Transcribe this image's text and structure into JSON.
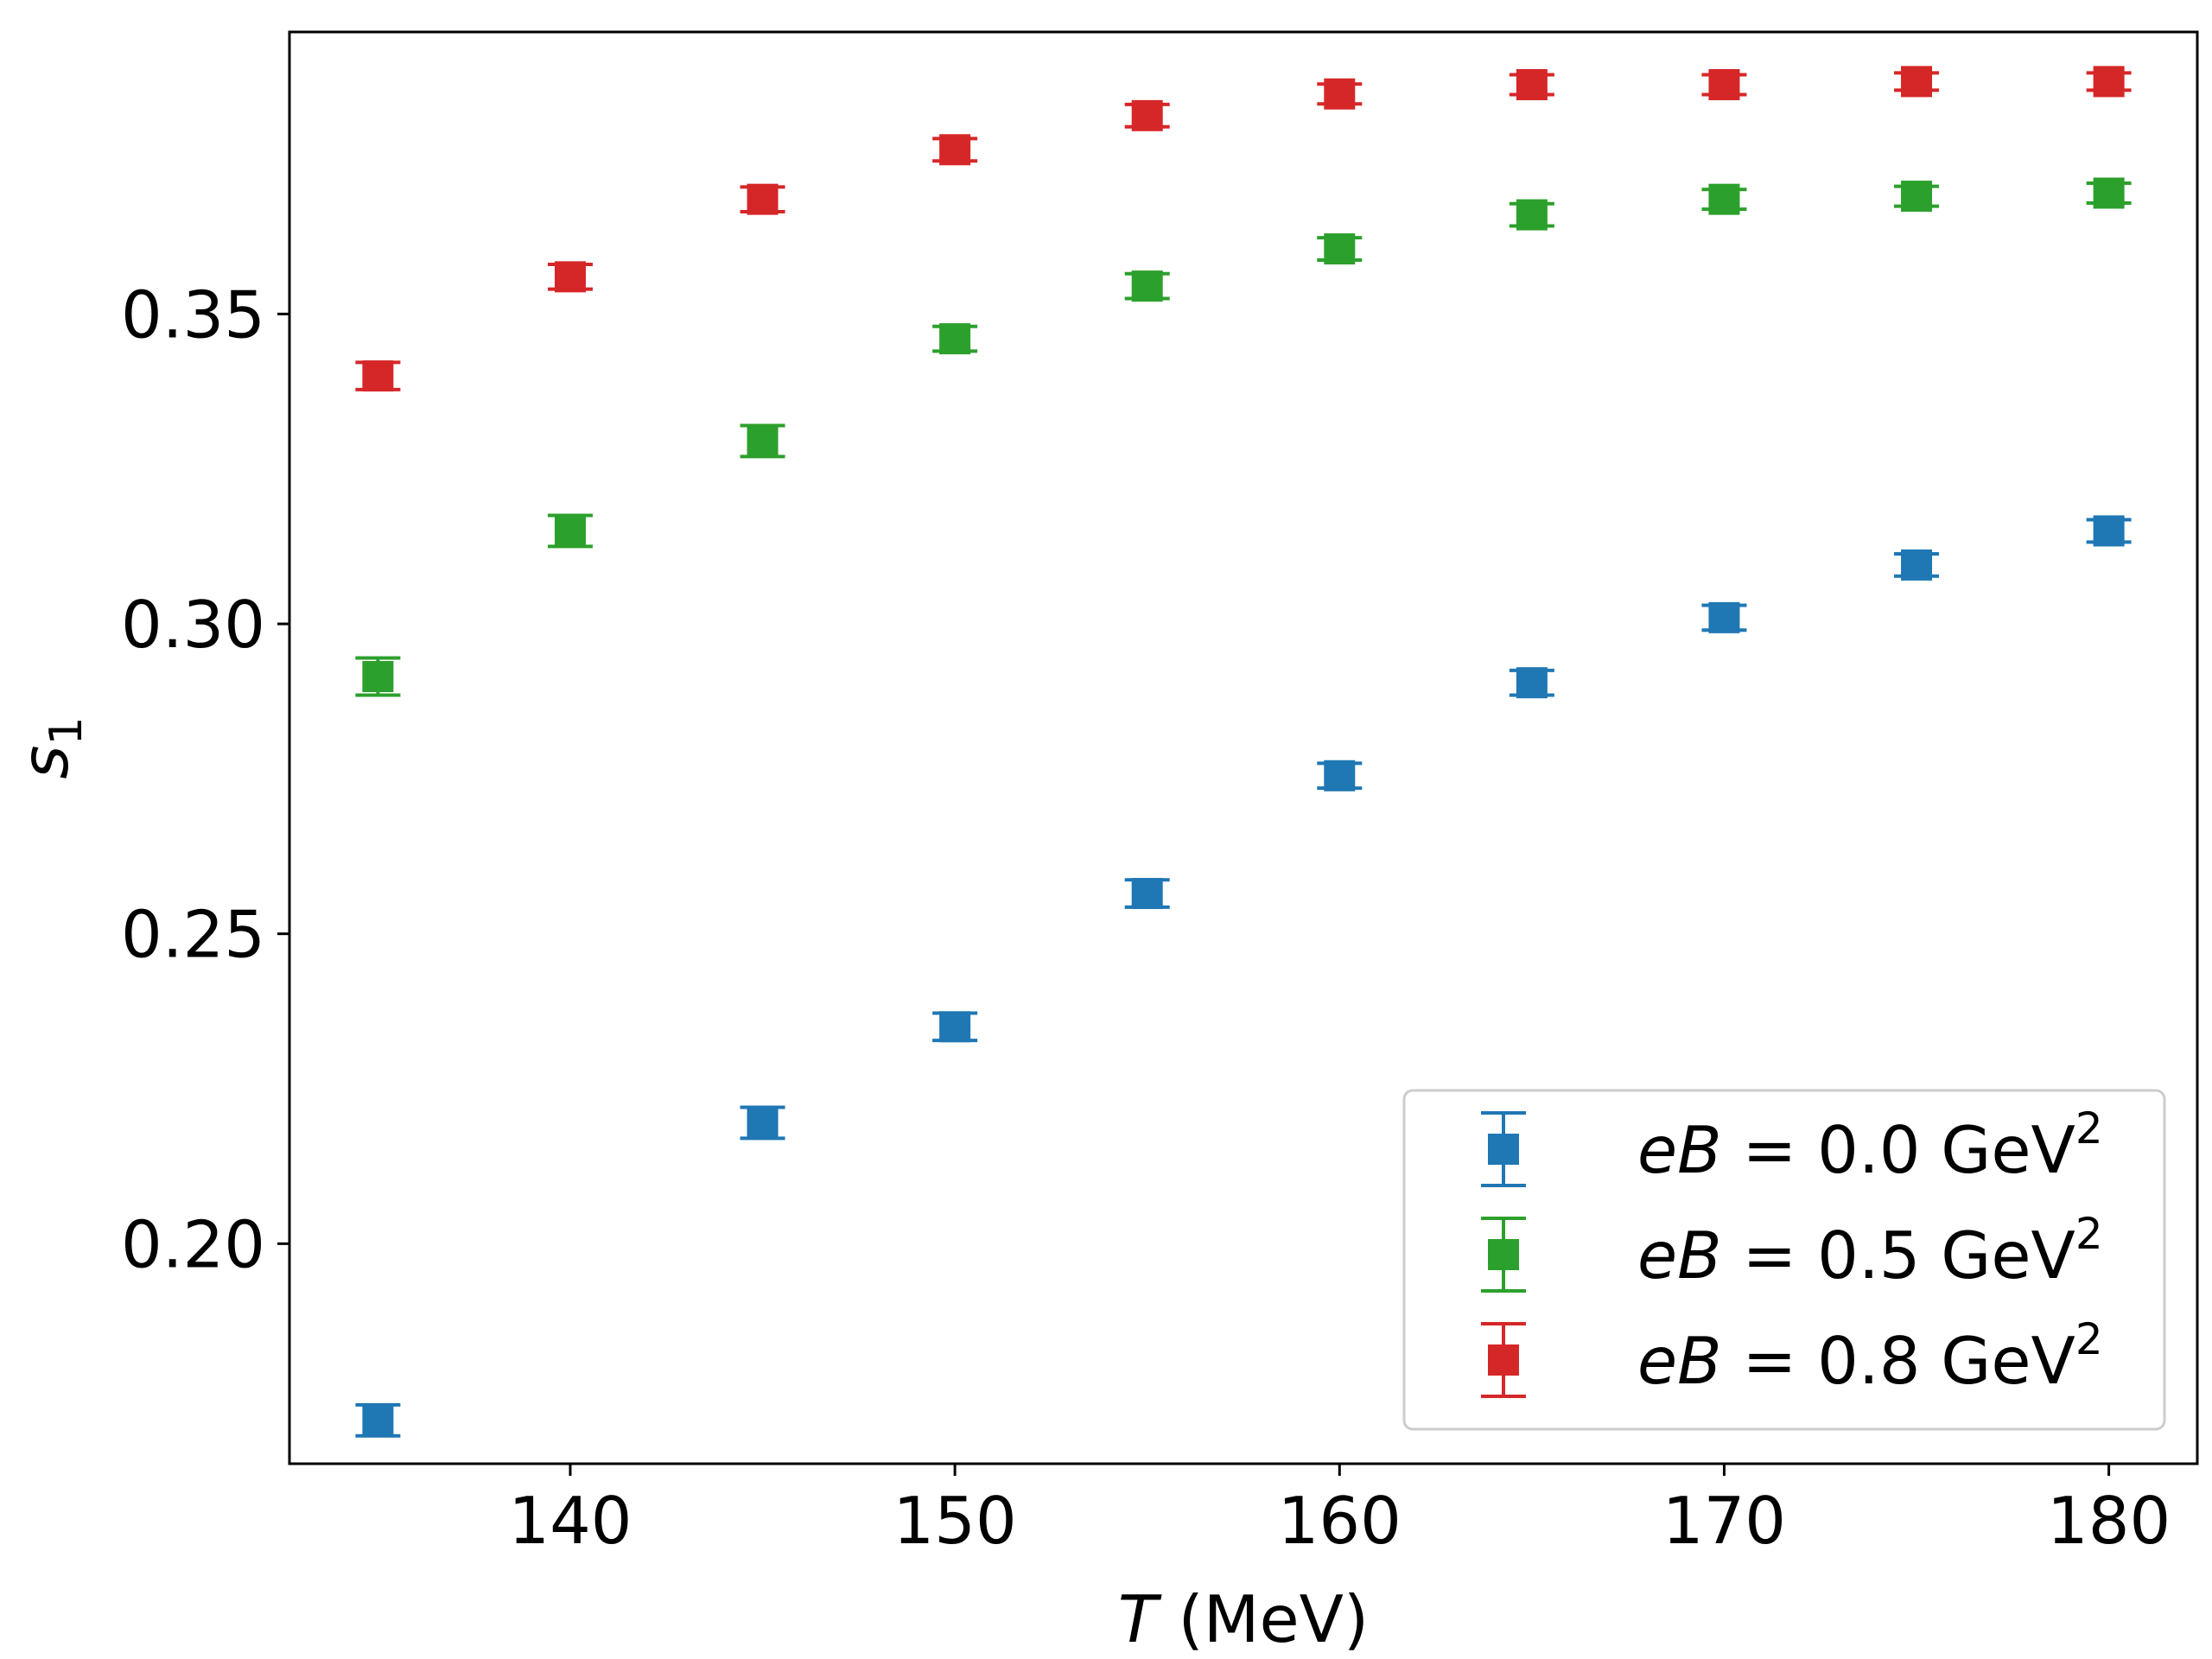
{
  "chart_data": {
    "type": "scatter",
    "xlabel": "T (MeV)",
    "ylabel": "s1",
    "xlim": [
      132.7,
      182.3
    ],
    "ylim": [
      0.1645,
      0.3955
    ],
    "xticks": [
      140,
      150,
      160,
      170,
      180
    ],
    "yticks": [
      0.2,
      0.25,
      0.3,
      0.35
    ],
    "grid": false,
    "legend_position": "lower-right",
    "series": [
      {
        "name": "eB = 0.0 GeV²",
        "legend_var": "eB",
        "legend_value": "0.0",
        "legend_unit": "GeV",
        "legend_exp": "2",
        "color": "#1f77b4",
        "x": [
          135,
          140,
          145,
          150,
          155,
          160,
          165,
          170,
          175,
          180
        ],
        "y": [
          0.1715,
          null,
          0.2195,
          0.235,
          0.2565,
          0.2755,
          0.2905,
          0.301,
          0.3095,
          0.315
        ],
        "err": [
          0.0025,
          null,
          0.0025,
          0.0022,
          0.0022,
          0.002,
          0.002,
          0.002,
          0.0018,
          0.0018
        ]
      },
      {
        "name": "eB = 0.5 GeV²",
        "legend_var": "eB",
        "legend_value": "0.5",
        "legend_unit": "GeV",
        "legend_exp": "2",
        "color": "#2ca02c",
        "x": [
          135,
          140,
          145,
          150,
          155,
          160,
          165,
          170,
          175,
          180
        ],
        "y": [
          0.2915,
          0.315,
          0.3295,
          0.346,
          0.3545,
          0.3605,
          0.366,
          0.3685,
          0.369,
          0.3695
        ],
        "err": [
          0.003,
          0.0025,
          0.0025,
          0.002,
          0.002,
          0.0018,
          0.0018,
          0.0016,
          0.0016,
          0.0016
        ]
      },
      {
        "name": "eB = 0.8 GeV²",
        "legend_var": "eB",
        "legend_value": "0.8",
        "legend_unit": "GeV",
        "legend_exp": "2",
        "color": "#d62728",
        "x": [
          135,
          140,
          145,
          150,
          155,
          160,
          165,
          170,
          175,
          180
        ],
        "y": [
          0.34,
          0.356,
          0.3685,
          0.3765,
          0.382,
          0.3855,
          0.387,
          0.387,
          0.3875,
          0.3875
        ],
        "err": [
          0.0022,
          0.002,
          0.002,
          0.0018,
          0.0018,
          0.0016,
          0.0016,
          0.0016,
          0.0014,
          0.0014
        ]
      }
    ]
  }
}
